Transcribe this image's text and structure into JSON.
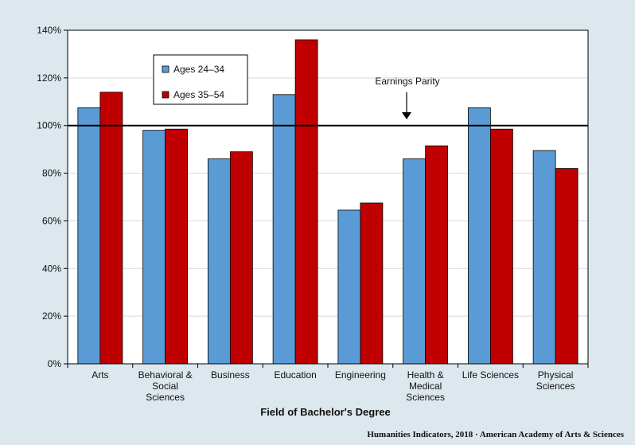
{
  "chart_data": {
    "type": "bar",
    "categories": [
      [
        "Arts"
      ],
      [
        "Behavioral &",
        "Social",
        "Sciences"
      ],
      [
        "Business"
      ],
      [
        "Education"
      ],
      [
        "Engineering"
      ],
      [
        "Health &",
        "Medical",
        "Sciences"
      ],
      [
        "Life Sciences"
      ],
      [
        "Physical",
        "Sciences"
      ]
    ],
    "series": [
      {
        "name": "Ages 24–34",
        "color": "#5b9bd5",
        "values": [
          107.5,
          98,
          86,
          113,
          64.5,
          86,
          107.5,
          89.5
        ]
      },
      {
        "name": "Ages 35–54",
        "color": "#c00000",
        "values": [
          114,
          98.5,
          89,
          136,
          67.5,
          91.5,
          98.5,
          82
        ]
      }
    ],
    "xlabel": "Field of Bachelor's Degree",
    "ylabel": "",
    "ylim": [
      0,
      140
    ],
    "y_ticks": [
      0,
      20,
      40,
      60,
      80,
      100,
      120,
      140
    ],
    "y_tick_suffix": "%",
    "grid": true,
    "legend_position": "top-left",
    "reference_line": {
      "value": 100,
      "label": "Earnings Parity"
    },
    "source_note": "Humanities Indicators, 2018 · American Academy of Arts & Sciences"
  }
}
